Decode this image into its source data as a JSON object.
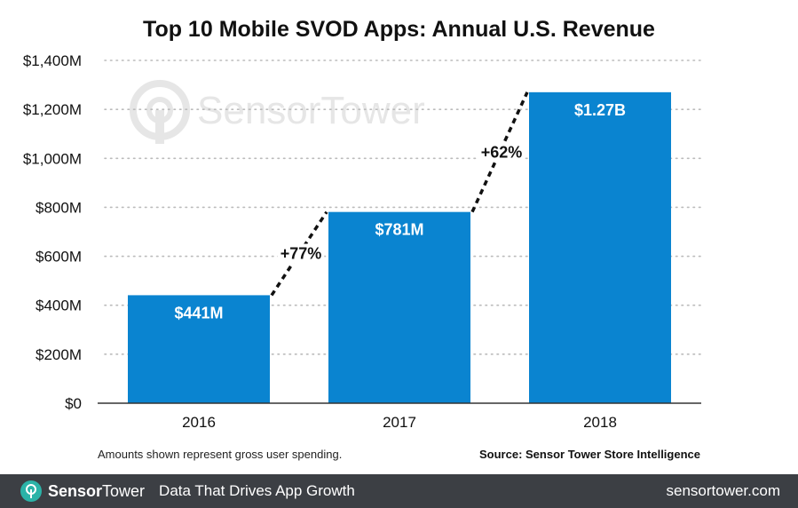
{
  "chart_data": {
    "type": "bar",
    "title": "Top 10 Mobile SVOD Apps: Annual U.S. Revenue",
    "categories": [
      "2016",
      "2017",
      "2018"
    ],
    "values": [
      441,
      781,
      1270
    ],
    "value_labels": [
      "$441M",
      "$781M",
      "$1.27B"
    ],
    "ylim": [
      0,
      1400
    ],
    "yticks": [
      0,
      200,
      400,
      600,
      800,
      1000,
      1200,
      1400
    ],
    "ytick_labels": [
      "$0",
      "$200M",
      "$400M",
      "$600M",
      "$800M",
      "$1,000M",
      "$1,200M",
      "$1,400M"
    ],
    "growth_annotations": [
      "+77%",
      "+62%"
    ],
    "grid": "horizontal dotted",
    "colors": {
      "bar": "#0a84d0",
      "grid": "#bbbbbb",
      "axis": "#333333"
    }
  },
  "watermark": {
    "text": "SensorTower",
    "logo": "sensor-tower-logo"
  },
  "note": "Amounts shown represent gross user spending.",
  "source": "Source: Sensor Tower Store Intelligence",
  "footer": {
    "brand": "SensorTower",
    "brand_bold": "Sensor",
    "brand_regular": "Tower",
    "tagline": "Data That Drives App Growth",
    "url": "sensortower.com",
    "background": "#3c3f44",
    "logo_color": "#2bb3a8"
  }
}
